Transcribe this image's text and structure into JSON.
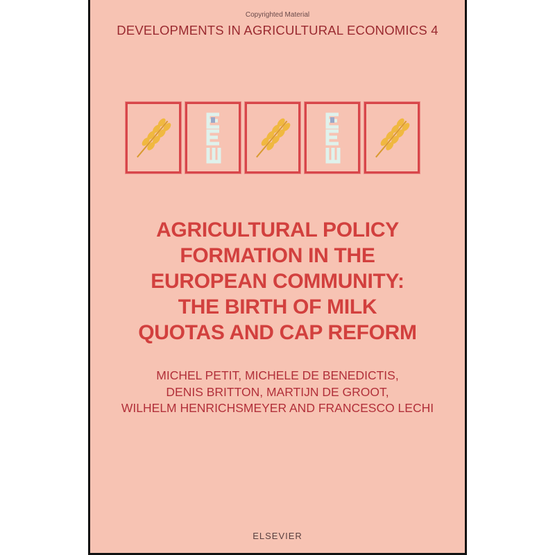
{
  "cover": {
    "background_color": "#f7c3b3",
    "accent_color": "#d2403e",
    "copyright_notice": "Copyrighted Material",
    "series": "DEVELOPMENTS IN AGRICULTURAL ECONOMICS 4",
    "emblems": [
      {
        "icon": "wheat-ear-icon"
      },
      {
        "icon": "eaae-logo-icon"
      },
      {
        "icon": "wheat-ear-icon"
      },
      {
        "icon": "eaae-logo-icon"
      },
      {
        "icon": "wheat-ear-icon"
      }
    ],
    "title_lines": [
      "AGRICULTURAL POLICY",
      "FORMATION IN THE",
      "EUROPEAN COMMUNITY:",
      "THE BIRTH OF MILK",
      "QUOTAS AND CAP REFORM"
    ],
    "author_lines": [
      "MICHEL PETIT, MICHELE DE BENEDICTIS,",
      "DENIS BRITTON, MARTIJN DE GROOT,",
      "WILHELM HENRICHSMEYER AND FRANCESCO LECHI"
    ],
    "publisher": "ELSEVIER"
  }
}
